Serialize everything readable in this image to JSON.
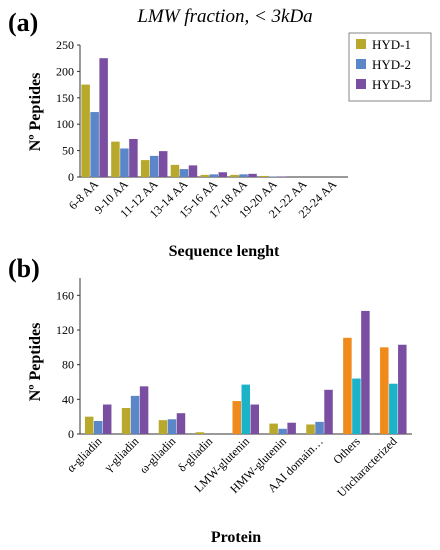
{
  "figure": {
    "panels": [
      {
        "letter": "(a)"
      },
      {
        "letter": "(b)"
      }
    ]
  },
  "chart_data": [
    {
      "type": "bar",
      "title": "LMW fraction, < 3kDa",
      "xlabel": "Sequence lenght",
      "ylabel": "Nº Peptides",
      "ylim": [
        0,
        250
      ],
      "yticks": [
        0,
        50,
        100,
        150,
        200,
        250
      ],
      "grid": false,
      "legend_position": "top-right",
      "categories": [
        "6-8 AA",
        "9-10 AA",
        "11-12 AA",
        "13-14 AA",
        "15-16 AA",
        "17-18 AA",
        "19-20 AA",
        "21-22 AA",
        "23-24 AA"
      ],
      "series": [
        {
          "name": "HYD-1",
          "color": "#b8a82c",
          "values": [
            175,
            67,
            32,
            23,
            4,
            4,
            2,
            0,
            0
          ]
        },
        {
          "name": "HYD-2",
          "color": "#5b86c8",
          "values": [
            123,
            54,
            40,
            15,
            5,
            5,
            1,
            0,
            0
          ]
        },
        {
          "name": "HYD-3",
          "color": "#7a4fa2",
          "values": [
            225,
            72,
            49,
            22,
            9,
            6,
            1,
            0,
            0
          ]
        }
      ]
    },
    {
      "type": "bar",
      "title": "",
      "xlabel": "Protein",
      "ylabel": "Nº Peptides",
      "ylim": [
        0,
        180
      ],
      "yticks": [
        0,
        40,
        80,
        120,
        160
      ],
      "grid": false,
      "categories": [
        "α-gliadin",
        "γ-gliadin",
        "ω-gliadin",
        "δ-gliadin",
        "LMW-glutenin",
        "HMW-glutenin",
        "AAI domain…",
        "Others",
        "Uncharacterized"
      ],
      "series": [
        {
          "values": [
            20,
            30,
            16,
            2,
            38,
            12,
            11,
            111,
            100
          ]
        },
        {
          "values": [
            15,
            44,
            17,
            0,
            57,
            6,
            14,
            64,
            58
          ]
        },
        {
          "values": [
            34,
            55,
            24,
            0,
            34,
            13,
            51,
            142,
            103
          ]
        }
      ],
      "series_colors": [
        [
          "#b8a82c",
          "#5b86c8",
          "#7a4fa2"
        ],
        [
          "#f08a1a",
          "#1cb3c8",
          "#7a4fa2"
        ]
      ]
    }
  ]
}
